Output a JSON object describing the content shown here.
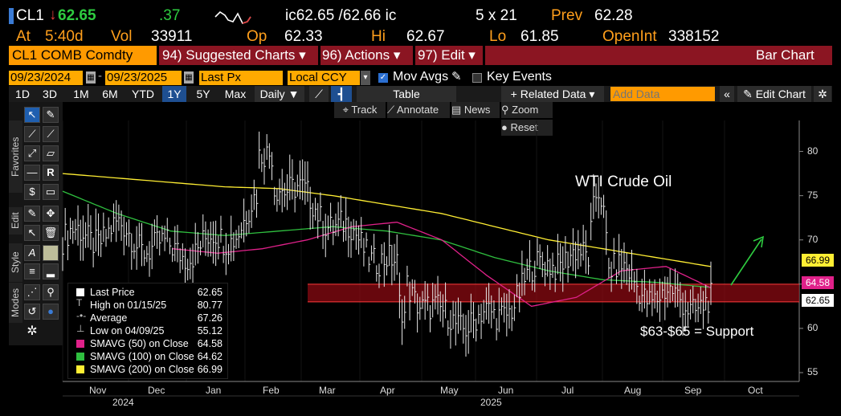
{
  "quote": {
    "ticker": "CL1",
    "last": "62.65",
    "change": ".37",
    "bid_ask_label": "ic62.65 /62.66 ic",
    "size": "5 x 21",
    "prev_label": "Prev",
    "prev": "62.28",
    "at_label": "At",
    "time": "5:40d",
    "vol_label": "Vol",
    "volume": "33911",
    "op_label": "Op",
    "open": "62.33",
    "hi_label": "Hi",
    "high": "62.67",
    "lo_label": "Lo",
    "low": "61.85",
    "oi_label": "OpenInt",
    "open_interest": "338152"
  },
  "menu": {
    "security": "CL1 COMB Comdty",
    "suggested": "94) Suggested Charts ▾",
    "actions": "96) Actions ▾",
    "edit": "97) Edit ▾",
    "chart_type": "Bar Chart"
  },
  "range": {
    "start": "09/23/2024",
    "end": "09/23/2025",
    "field": "Last Px",
    "currency": "Local CCY",
    "mov_avgs": "Mov Avgs",
    "key_events": "Key Events"
  },
  "toolbar": {
    "periods": [
      "1D",
      "3D",
      "1M",
      "6M",
      "YTD",
      "1Y",
      "5Y",
      "Max"
    ],
    "selected_period": "1Y",
    "frequency": "Daily ▼",
    "table": "Table",
    "related": "+ Related Data ▾",
    "add_data_placeholder": "Add Data",
    "edit_chart": "Edit Chart"
  },
  "subtoolbar": {
    "track": "⌖ Track",
    "annotate": "Annotate",
    "news": "News",
    "zoom": "⚲ Zoom",
    "reset": "Reset"
  },
  "side_tabs": [
    "Favorites",
    "Edit",
    "Style",
    "Modes"
  ],
  "icons": [
    "cursor-icon",
    "pencil-icon",
    "line-icon",
    "trendline-icon",
    "ray-icon",
    "channel-icon",
    "hline-icon",
    "text-icon",
    "fib-icon",
    "rect-icon",
    "brush-icon",
    "crosshair-icon",
    "arrow-icon",
    "trash-icon",
    "font-icon",
    "fill-icon",
    "lines-icon",
    "lock-icon",
    "magnet-icon",
    "grid-icon",
    "undo-icon",
    "settings-icon"
  ],
  "legend": [
    {
      "label": "Last Price",
      "value": "62.65",
      "color": "#ffffff"
    },
    {
      "label": "High on 01/15/25",
      "value": "80.77",
      "color": ""
    },
    {
      "label": "Average",
      "value": "67.26",
      "color": ""
    },
    {
      "label": "Low on 04/09/25",
      "value": "55.12",
      "color": ""
    },
    {
      "label": "SMAVG (50)  on Close",
      "value": "64.58",
      "color": "#e0218a"
    },
    {
      "label": "SMAVG (100)  on Close",
      "value": "64.62",
      "color": "#2fbf3f"
    },
    {
      "label": "SMAVG (200)  on Close",
      "value": "66.99",
      "color": "#ffee33"
    }
  ],
  "annotations": {
    "title": "WTI Crude Oil",
    "support": "$63-$65 = Support"
  },
  "price_tags": [
    {
      "value": "66.99",
      "color": "#ffee33"
    },
    {
      "value": "64.58",
      "color": "#e0218a"
    },
    {
      "value": "62.65",
      "color": "#ffffff"
    }
  ],
  "chart_data": {
    "type": "bar",
    "title": "WTI Crude Oil",
    "y_ticks": [
      "80",
      "75",
      "70",
      "65",
      "60",
      "55"
    ],
    "ylim": [
      54,
      83.5
    ],
    "x_ticks": [
      "Nov",
      "Dec",
      "Jan",
      "Feb",
      "Mar",
      "Apr",
      "May",
      "Jun",
      "Jul",
      "Aug",
      "Sep",
      "Oct"
    ],
    "year_labels": [
      "2024",
      "2025"
    ],
    "support_band": [
      63,
      65
    ],
    "series": [
      {
        "name": "Last Price",
        "x": [
          "2024-09",
          "2024-10",
          "2024-11",
          "2024-12",
          "2025-01",
          "2025-02",
          "2025-03",
          "2025-04",
          "2025-05",
          "2025-06",
          "2025-07",
          "2025-08",
          "2025-09"
        ],
        "values": [
          70,
          71,
          68.5,
          70,
          77,
          72,
          67.5,
          61,
          61,
          68,
          67.5,
          63.5,
          62.65
        ]
      },
      {
        "name": "SMAVG (50) on Close",
        "values": [
          69,
          68.5,
          69,
          70,
          71.5,
          72,
          70,
          66,
          62.5,
          63.5,
          66.5,
          67,
          64.58
        ]
      },
      {
        "name": "SMAVG (100) on Close",
        "values": [
          75.5,
          73,
          71,
          70.5,
          71,
          71.5,
          71,
          70,
          68,
          66.5,
          65.5,
          65.2,
          64.62
        ]
      },
      {
        "name": "SMAVG (200) on Close",
        "values": [
          77.5,
          77,
          76.5,
          76,
          75.8,
          75,
          74,
          73,
          71.5,
          70,
          69,
          68,
          66.99
        ]
      }
    ]
  }
}
